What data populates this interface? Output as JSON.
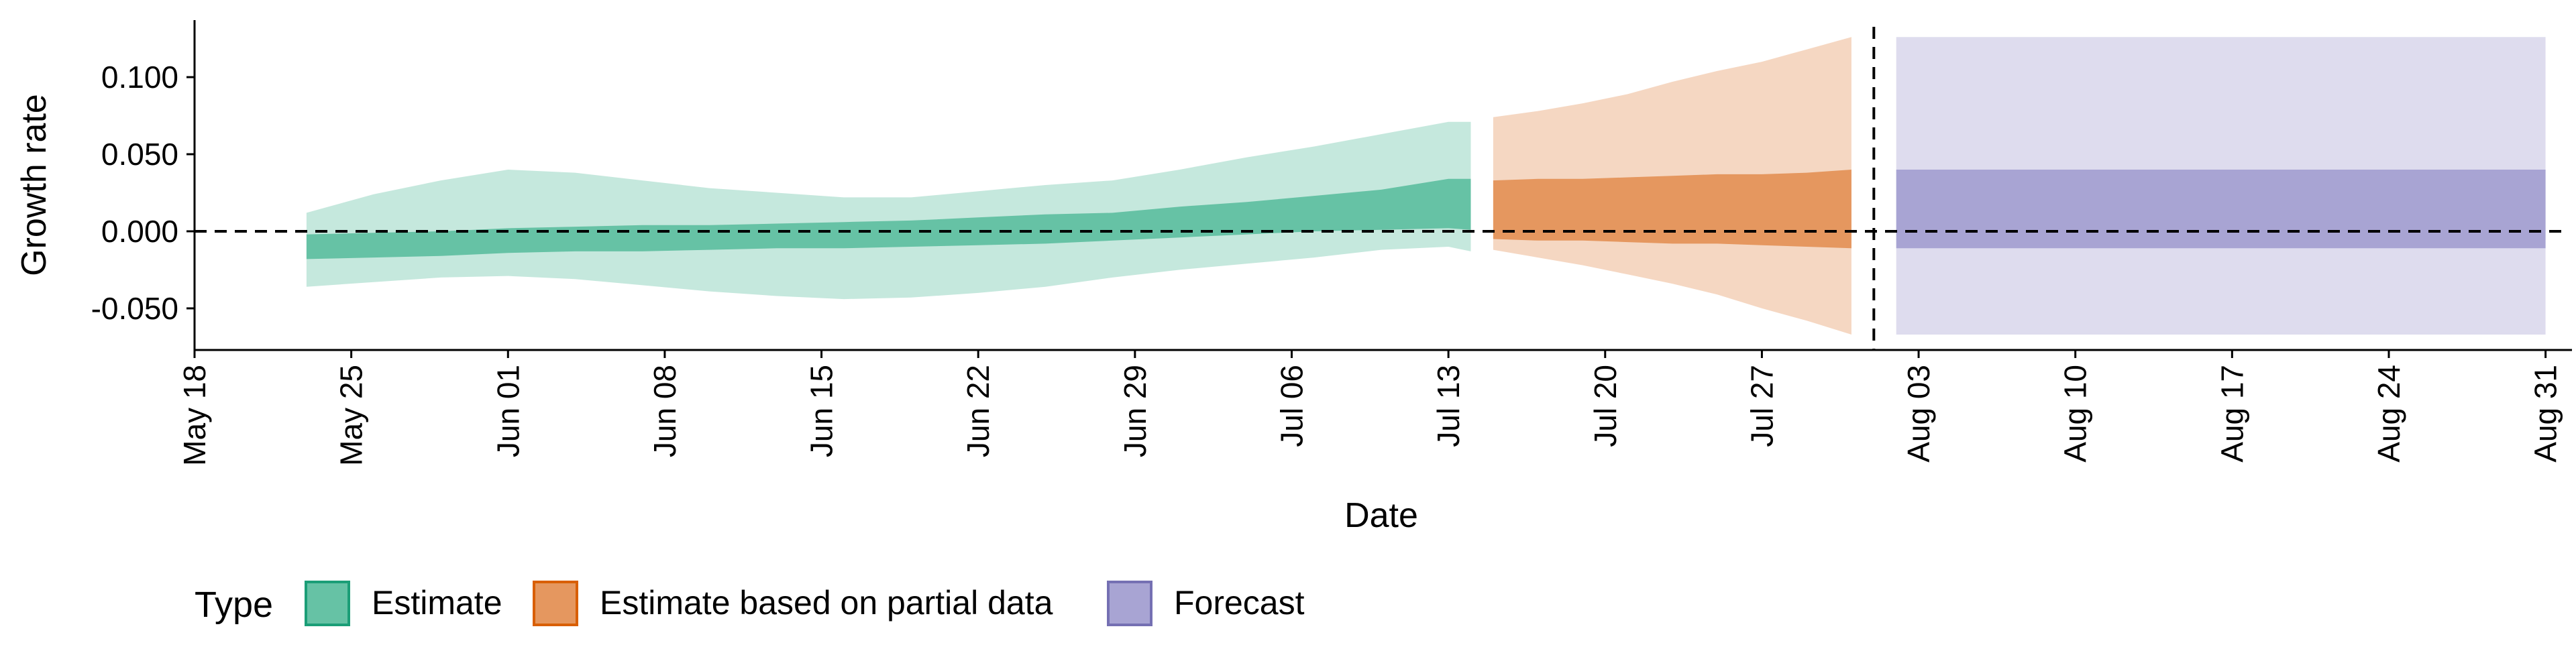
{
  "chart_data": {
    "type": "area",
    "xlabel": "Date",
    "ylabel": "Growth rate",
    "x_ticks": [
      "May 18",
      "May 25",
      "Jun 01",
      "Jun 08",
      "Jun 15",
      "Jun 22",
      "Jun 29",
      "Jul 06",
      "Jul 13",
      "Jul 20",
      "Jul 27",
      "Aug 03",
      "Aug 10",
      "Aug 17",
      "Aug 24",
      "Aug 31"
    ],
    "y_ticks": [
      "0.100",
      "0.050",
      "0.000",
      "-0.050"
    ],
    "xlim": [
      "2020-05-18",
      "2020-09-01"
    ],
    "ylim": [
      -0.077,
      0.137
    ],
    "reference_lines": {
      "horizontal_y": 0.0,
      "vertical_date": "2020-08-01"
    },
    "grid": false,
    "legend": {
      "title": "Type",
      "position": "bottom-left",
      "entries": [
        "Estimate",
        "Estimate based on partial data",
        "Forecast"
      ]
    },
    "colors": {
      "Estimate": "#66c2a5",
      "Estimate based on partial data": "#e5975f",
      "Forecast": "#a8a4d3",
      "Estimate_border": "#1b9e77",
      "Estimate based on partial data_border": "#d95f02",
      "Forecast_border": "#7570b3"
    },
    "series": [
      {
        "name": "Estimate",
        "x": [
          "2020-05-23",
          "2020-05-26",
          "2020-05-29",
          "2020-06-01",
          "2020-06-04",
          "2020-06-07",
          "2020-06-10",
          "2020-06-13",
          "2020-06-16",
          "2020-06-19",
          "2020-06-22",
          "2020-06-25",
          "2020-06-28",
          "2020-07-01",
          "2020-07-04",
          "2020-07-07",
          "2020-07-10",
          "2020-07-13",
          "2020-07-14"
        ],
        "outer_upper": [
          0.012,
          0.024,
          0.033,
          0.04,
          0.038,
          0.033,
          0.028,
          0.025,
          0.022,
          0.022,
          0.026,
          0.03,
          0.033,
          0.04,
          0.048,
          0.055,
          0.063,
          0.071,
          0.071
        ],
        "outer_lower": [
          -0.036,
          -0.033,
          -0.03,
          -0.029,
          -0.031,
          -0.035,
          -0.039,
          -0.042,
          -0.044,
          -0.043,
          -0.04,
          -0.036,
          -0.03,
          -0.025,
          -0.021,
          -0.017,
          -0.012,
          -0.01,
          -0.013
        ],
        "inner_upper": [
          -0.002,
          -0.001,
          0.0,
          0.002,
          0.003,
          0.004,
          0.004,
          0.005,
          0.006,
          0.007,
          0.009,
          0.011,
          0.012,
          0.016,
          0.019,
          0.023,
          0.027,
          0.034,
          0.034
        ],
        "inner_lower": [
          -0.018,
          -0.017,
          -0.016,
          -0.014,
          -0.013,
          -0.013,
          -0.012,
          -0.011,
          -0.011,
          -0.01,
          -0.009,
          -0.008,
          -0.006,
          -0.004,
          -0.002,
          0.0,
          0.001,
          0.002,
          0.001
        ]
      },
      {
        "name": "Estimate based on partial data",
        "x": [
          "2020-07-15",
          "2020-07-17",
          "2020-07-19",
          "2020-07-21",
          "2020-07-23",
          "2020-07-25",
          "2020-07-27",
          "2020-07-29",
          "2020-07-31"
        ],
        "outer_upper": [
          0.074,
          0.078,
          0.083,
          0.089,
          0.097,
          0.104,
          0.11,
          0.118,
          0.126
        ],
        "outer_lower": [
          -0.012,
          -0.017,
          -0.022,
          -0.028,
          -0.034,
          -0.041,
          -0.05,
          -0.058,
          -0.067
        ],
        "inner_upper": [
          0.033,
          0.034,
          0.034,
          0.035,
          0.036,
          0.037,
          0.037,
          0.038,
          0.04
        ],
        "inner_lower": [
          -0.005,
          -0.006,
          -0.006,
          -0.007,
          -0.008,
          -0.008,
          -0.009,
          -0.01,
          -0.011
        ]
      },
      {
        "name": "Forecast",
        "x": [
          "2020-08-02",
          "2020-08-31"
        ],
        "outer_upper": [
          0.126,
          0.126
        ],
        "outer_lower": [
          -0.067,
          -0.067
        ],
        "inner_upper": [
          0.04,
          0.04
        ],
        "inner_lower": [
          -0.011,
          -0.011
        ]
      }
    ]
  }
}
